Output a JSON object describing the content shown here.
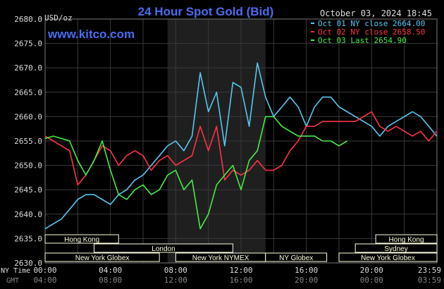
{
  "header": {
    "title": "24 Hour Spot Gold (Bid)",
    "units": "USD/oz",
    "timestamp": "October 03, 2024 18:45",
    "watermark": "www.kitco.com"
  },
  "legend": [
    {
      "label": "Oct 01 NY close 2664.00",
      "color": "#55c8f0"
    },
    {
      "label": "Oct 02 NY close 2658.50",
      "color": "#ff3344"
    },
    {
      "label": "Oct 03 Last 2654.90",
      "color": "#44ee44"
    }
  ],
  "colors": {
    "background": "#000000",
    "grid": "#3a3a3a",
    "axis_text": "#dddddd",
    "title": "#4a6cf0",
    "watermark": "#4a6cf0",
    "session_highlight": "#1f1f1f",
    "session_bar": "#ffffe0"
  },
  "sessions": [
    {
      "label": "Hong Kong",
      "start": 0,
      "end": 4.5,
      "row": 0
    },
    {
      "label": "Hong Kong",
      "start": 20.25,
      "end": 24,
      "row": 0
    },
    {
      "label": "London",
      "start": 3,
      "end": 11.5,
      "row": 1
    },
    {
      "label": "Sydney",
      "start": 19,
      "end": 24,
      "row": 1
    },
    {
      "label": "New York Globex",
      "start": 0,
      "end": 7,
      "row": 2
    },
    {
      "label": "New York NYMEX",
      "start": 8,
      "end": 13.5,
      "row": 2
    },
    {
      "label": "NY Globex",
      "start": 13.5,
      "end": 17.25,
      "row": 2
    },
    {
      "label": "New York Globex",
      "start": 18,
      "end": 24,
      "row": 2
    }
  ],
  "x_rows": {
    "ny_label": "NY Time",
    "gmt_label": "GMT",
    "ny_ticks": [
      "00:00",
      "04:00",
      "08:00",
      "12:00",
      "16:00",
      "20:00",
      "23:59"
    ],
    "gmt_ticks": [
      "04:00",
      "08:00",
      "12:00",
      "16:00",
      "20:00",
      "00:00",
      "03:59"
    ]
  },
  "chart_data": {
    "type": "line",
    "title": "24 Hour Spot Gold (Bid)",
    "ylabel": "USD/oz",
    "xlabel": "NY Time",
    "xlim": [
      0,
      24
    ],
    "ylim": [
      2630,
      2680
    ],
    "yticks": [
      "2630.0",
      "2635.0",
      "2640.0",
      "2645.0",
      "2650.0",
      "2655.0",
      "2660.0",
      "2665.0",
      "2670.0",
      "2675.0",
      "2680.0"
    ],
    "grid": true,
    "legend_position": "top-right",
    "highlight_range": [
      7.5,
      13.5
    ],
    "series": [
      {
        "name": "Oct 01 NY close 2664.00",
        "color": "#55c8f0",
        "x": [
          0,
          0.5,
          1,
          1.5,
          2,
          2.5,
          3,
          3.5,
          4,
          4.5,
          5,
          5.5,
          6,
          6.5,
          7,
          7.5,
          8,
          8.5,
          9,
          9.5,
          10,
          10.5,
          11,
          11.5,
          12,
          12.5,
          13,
          13.5,
          14,
          14.5,
          15,
          15.5,
          16,
          16.5,
          17,
          17.5,
          18,
          18.5,
          19,
          19.5,
          20,
          20.5,
          21,
          21.5,
          22,
          22.5,
          23,
          23.5,
          23.99
        ],
        "y": [
          2637,
          2638,
          2639,
          2641,
          2643,
          2644,
          2644,
          2643,
          2642,
          2644,
          2645,
          2647,
          2648,
          2650,
          2652,
          2654,
          2655,
          2653,
          2656,
          2669,
          2661,
          2665,
          2654,
          2667,
          2666,
          2658,
          2671,
          2664,
          2660,
          2662,
          2664,
          2662,
          2658,
          2662,
          2664,
          2664,
          2662,
          2661,
          2660,
          2659,
          2658,
          2656,
          2658,
          2659,
          2660,
          2661,
          2660,
          2658,
          2656
        ]
      },
      {
        "name": "Oct 02 NY close 2658.50",
        "color": "#ff3344",
        "x": [
          0,
          0.5,
          1,
          1.5,
          2,
          2.5,
          3,
          3.5,
          4,
          4.5,
          5,
          5.5,
          6,
          6.5,
          7,
          7.5,
          8,
          8.5,
          9,
          9.5,
          10,
          10.5,
          11,
          11.5,
          12,
          12.5,
          13,
          13.5,
          14,
          14.5,
          15,
          15.5,
          16,
          16.5,
          17,
          17.5,
          18,
          18.5,
          19,
          19.5,
          20,
          20.5,
          21,
          21.5,
          22,
          22.5,
          23,
          23.5,
          23.99
        ],
        "y": [
          2656,
          2655,
          2654,
          2653,
          2646,
          2648,
          2651,
          2654,
          2653,
          2650,
          2652,
          2653,
          2652,
          2649,
          2651,
          2652,
          2650,
          2651,
          2652,
          2658,
          2653,
          2658,
          2647,
          2649,
          2648,
          2649,
          2651,
          2649,
          2649,
          2650,
          2653,
          2655,
          2658,
          2658,
          2659,
          2659,
          2659,
          2659,
          2659,
          2660,
          2661,
          2658,
          2657,
          2658,
          2657,
          2656,
          2657,
          2655,
          2657
        ]
      },
      {
        "name": "Oct 03 Last 2654.90",
        "color": "#44ee44",
        "x": [
          0,
          0.5,
          1,
          1.5,
          2,
          2.5,
          3,
          3.5,
          4,
          4.5,
          5,
          5.5,
          6,
          6.5,
          7,
          7.5,
          8,
          8.5,
          9,
          9.5,
          10,
          10.5,
          11,
          11.5,
          12,
          12.5,
          13,
          13.5,
          14,
          14.5,
          15,
          15.5,
          16,
          16.5,
          17,
          17.5,
          18,
          18.5
        ],
        "y": [
          2655.5,
          2656,
          2655.5,
          2655,
          2651,
          2648,
          2651,
          2655,
          2649,
          2644,
          2643,
          2645,
          2646,
          2644,
          2645,
          2648,
          2649,
          2645,
          2647,
          2637,
          2640,
          2646,
          2648,
          2650,
          2645,
          2651,
          2653,
          2660,
          2660,
          2658,
          2657,
          2656,
          2656,
          2656,
          2655,
          2655,
          2654,
          2655
        ]
      }
    ]
  }
}
